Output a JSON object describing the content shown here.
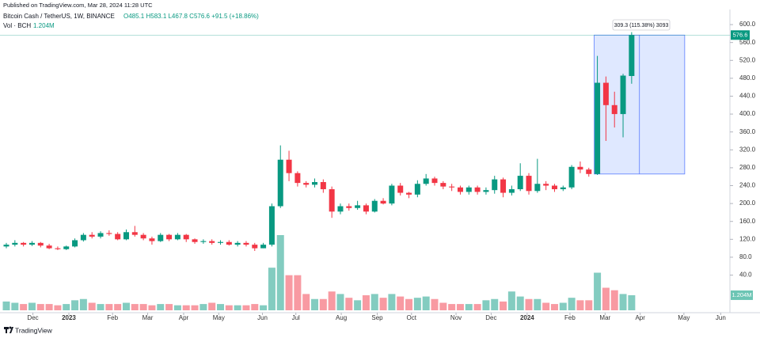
{
  "header": {
    "published": "Published on TradingView.com, Mar 28, 2024 11:28 UTC",
    "symbol": "Bitcoin Cash / TetherUS, 1W, BINANCE",
    "ohlc": "O485.1 H583.1 L467.8 C576.6 +91.5 (+18.86%)",
    "vol_name": "Vol · BCH",
    "vol_value": "1.204M",
    "brand": "TradingView"
  },
  "chart_data": {
    "type": "candlestick",
    "open": [
      104,
      108,
      112,
      108,
      112,
      106,
      100,
      98,
      104,
      118,
      130,
      126,
      134,
      132,
      120,
      136,
      130,
      122,
      116,
      130,
      120,
      130,
      120,
      114,
      116,
      112,
      114,
      108,
      112,
      108,
      100,
      108,
      194,
      298,
      268,
      246,
      242,
      248,
      232,
      182,
      194,
      190,
      196,
      182,
      206,
      200,
      240,
      224,
      220,
      244,
      256,
      246,
      238,
      236,
      226,
      236,
      226,
      230,
      254,
      224,
      232,
      262,
      228,
      244,
      240,
      232,
      236,
      282,
      276,
      266,
      470,
      420,
      400,
      485.1
    ],
    "high": [
      112,
      118,
      114,
      116,
      114,
      110,
      104,
      106,
      122,
      134,
      136,
      138,
      140,
      136,
      142,
      150,
      134,
      126,
      134,
      132,
      134,
      132,
      122,
      120,
      120,
      118,
      118,
      116,
      116,
      112,
      112,
      200,
      330,
      318,
      272,
      250,
      256,
      254,
      238,
      200,
      200,
      206,
      200,
      210,
      212,
      244,
      246,
      226,
      252,
      266,
      260,
      250,
      244,
      240,
      240,
      240,
      236,
      262,
      258,
      240,
      290,
      268,
      300,
      250,
      244,
      240,
      286,
      294,
      280,
      530,
      484,
      450,
      490,
      583.1
    ],
    "low": [
      100,
      104,
      104,
      105,
      102,
      98,
      96,
      96,
      102,
      115,
      122,
      122,
      128,
      118,
      118,
      126,
      118,
      108,
      114,
      116,
      118,
      114,
      110,
      110,
      108,
      108,
      106,
      104,
      104,
      94,
      100,
      104,
      190,
      250,
      238,
      236,
      236,
      224,
      168,
      176,
      184,
      186,
      176,
      180,
      198,
      196,
      218,
      212,
      214,
      240,
      240,
      232,
      228,
      220,
      220,
      220,
      220,
      222,
      214,
      218,
      228,
      220,
      224,
      230,
      226,
      228,
      232,
      268,
      260,
      264,
      340,
      370,
      348,
      467.8
    ],
    "close": [
      108,
      112,
      108,
      112,
      106,
      100,
      98,
      104,
      118,
      130,
      126,
      134,
      132,
      120,
      136,
      130,
      122,
      116,
      130,
      120,
      130,
      120,
      114,
      116,
      112,
      114,
      108,
      112,
      108,
      100,
      108,
      194,
      298,
      268,
      246,
      242,
      248,
      232,
      182,
      194,
      190,
      196,
      182,
      206,
      200,
      240,
      224,
      220,
      244,
      256,
      246,
      238,
      236,
      226,
      236,
      226,
      230,
      254,
      224,
      232,
      262,
      228,
      244,
      240,
      232,
      236,
      282,
      276,
      266,
      470,
      420,
      400,
      486,
      576.6
    ],
    "volume": [
      0.7,
      0.6,
      0.5,
      0.6,
      0.5,
      0.5,
      0.4,
      0.5,
      0.8,
      0.9,
      0.6,
      0.5,
      0.5,
      0.5,
      0.6,
      0.5,
      0.5,
      0.4,
      0.5,
      0.5,
      0.4,
      0.4,
      0.4,
      0.5,
      0.6,
      0.5,
      0.4,
      0.4,
      0.4,
      0.5,
      0.4,
      3.4,
      6.0,
      2.8,
      2.8,
      1.3,
      0.9,
      0.9,
      1.5,
      1.3,
      1.0,
      0.8,
      1.2,
      1.3,
      1.0,
      1.3,
      1.1,
      0.9,
      1.0,
      1.1,
      0.9,
      0.6,
      0.5,
      0.5,
      0.5,
      0.5,
      0.8,
      0.9,
      0.7,
      1.5,
      1.1,
      0.9,
      0.9,
      0.6,
      0.5,
      0.6,
      1.0,
      0.8,
      0.8,
      3.0,
      1.8,
      1.6,
      1.3,
      1.204
    ],
    "volume_tag": "1.204M",
    "up_color": "#089981",
    "down_color": "#f23645",
    "measure": "309.3 (115.38%) 3093",
    "ylim": [
      -44,
      655
    ],
    "yticks": [
      {
        "value": 40,
        "label": "40.0"
      },
      {
        "value": 80,
        "label": "80.0"
      },
      {
        "value": 120,
        "label": "120.0"
      },
      {
        "value": 160,
        "label": "160.0"
      },
      {
        "value": 200,
        "label": "200.0"
      },
      {
        "value": 240,
        "label": "240.0"
      },
      {
        "value": 280,
        "label": "280.0"
      },
      {
        "value": 320,
        "label": "320.0"
      },
      {
        "value": 360,
        "label": "360.0"
      },
      {
        "value": 400,
        "label": "400.0"
      },
      {
        "value": 440,
        "label": "440.0"
      },
      {
        "value": 480,
        "label": "480.0"
      },
      {
        "value": 520,
        "label": "520.0"
      },
      {
        "value": 560,
        "label": "560.0"
      },
      {
        "value": 600,
        "label": "600.0"
      }
    ],
    "xticks": [
      {
        "value": 3.1,
        "label": "Dec"
      },
      {
        "value": 7.3,
        "label": "2023"
      },
      {
        "value": 12.4,
        "label": "Feb"
      },
      {
        "value": 16.5,
        "label": "Mar"
      },
      {
        "value": 20.7,
        "label": "Apr"
      },
      {
        "value": 24.8,
        "label": "May"
      },
      {
        "value": 29.9,
        "label": "Jun"
      },
      {
        "value": 33.8,
        "label": "Jul"
      },
      {
        "value": 39.1,
        "label": "Aug"
      },
      {
        "value": 43.3,
        "label": "Sep"
      },
      {
        "value": 47.3,
        "label": "Oct"
      },
      {
        "value": 52.5,
        "label": "Nov"
      },
      {
        "value": 56.6,
        "label": "Dec"
      },
      {
        "value": 60.8,
        "label": "2024"
      },
      {
        "value": 65.8,
        "label": "Feb"
      },
      {
        "value": 69.9,
        "label": "Mar"
      },
      {
        "value": 74.0,
        "label": "Apr"
      },
      {
        "value": 79.1,
        "label": "May"
      },
      {
        "value": 83.4,
        "label": "Jun"
      }
    ]
  }
}
